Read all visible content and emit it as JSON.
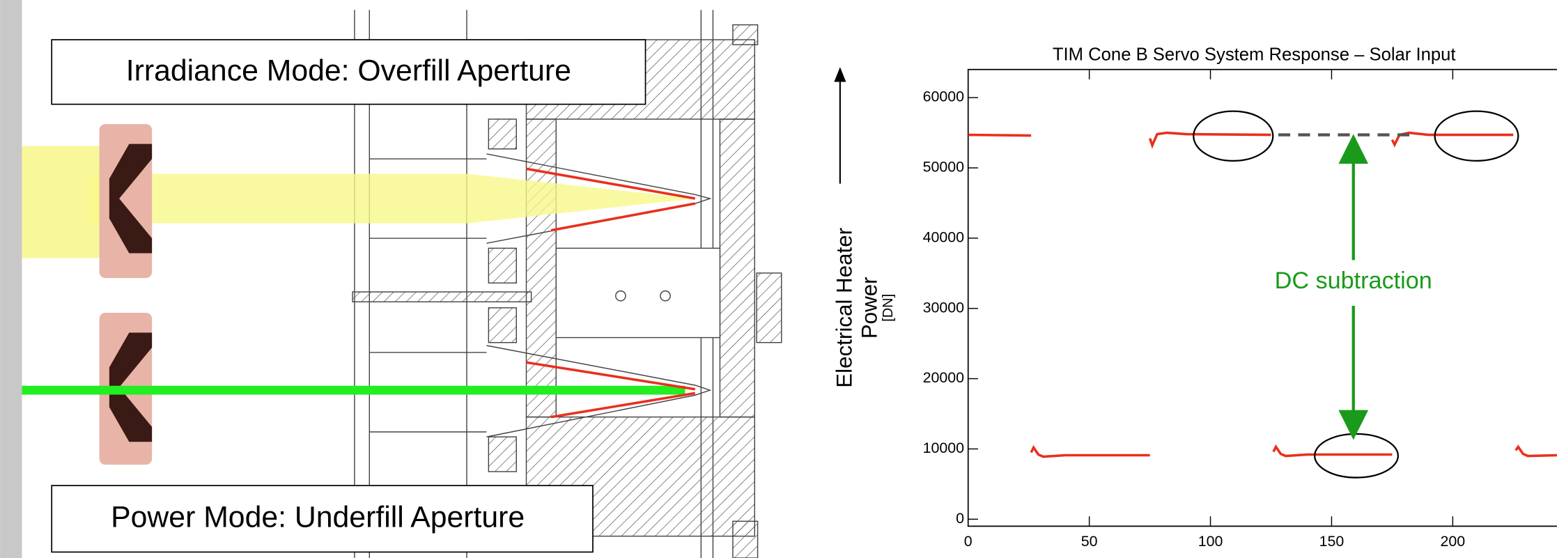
{
  "diagram": {
    "irradiance_label": "Irradiance Mode: Overfill Aperture",
    "power_label": "Power Mode: Underfill Aperture"
  },
  "chart_data": {
    "type": "line",
    "title": "TIM Cone B Servo System Response – Solar Input",
    "ylabel": "Electrical Heater",
    "ylabel_line2": "Power",
    "ylabel_unit": "[DN]",
    "xlim": [
      0,
      243
    ],
    "xticks": [
      0,
      50,
      100,
      150,
      200
    ],
    "ylim": [
      -1000,
      64000
    ],
    "yticks": [
      0,
      10000,
      20000,
      30000,
      40000,
      50000,
      60000
    ],
    "series": [
      {
        "color": "#e8301c",
        "dash": false,
        "x": [
          0,
          26,
          26,
          26,
          27,
          29,
          31,
          40,
          75,
          75,
          75,
          76,
          78,
          82,
          90,
          125,
          125,
          126,
          127,
          129,
          131,
          140,
          175,
          175,
          175,
          176,
          178,
          182,
          190,
          225,
          225,
          226,
          227,
          229,
          231,
          243
        ],
        "values": [
          54700,
          54600,
          null,
          9500,
          10200,
          9200,
          8900,
          9100,
          9100,
          null,
          54200,
          53200,
          54800,
          55000,
          54800,
          54700,
          null,
          9600,
          10300,
          9300,
          9000,
          9200,
          9200,
          null,
          54000,
          53300,
          54700,
          55000,
          54700,
          54700,
          null,
          9800,
          10300,
          9300,
          9000,
          9100
        ]
      },
      {
        "color": "#555555",
        "dash": true,
        "x": [
          128,
          183
        ],
        "values": [
          54700,
          54700
        ]
      }
    ],
    "annotations": [
      "DC subtraction"
    ]
  }
}
